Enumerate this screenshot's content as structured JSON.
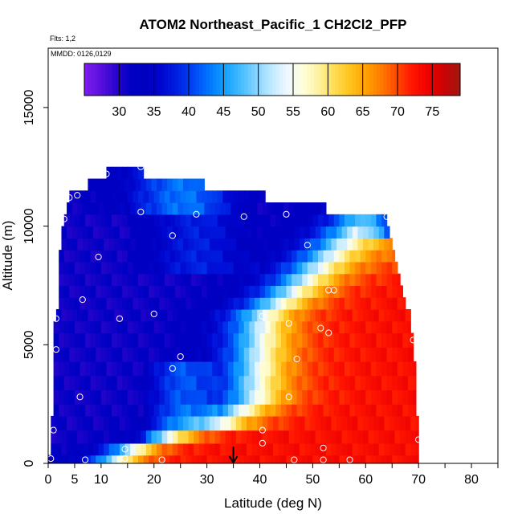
{
  "chart_data": {
    "type": "heatmap",
    "title": "ATOM2 Northeast_Pacific_1 CH2Cl2_PFP",
    "annotations": {
      "flights": "Flts: 1,2",
      "dates": "MMDD: 0126,0129"
    },
    "xlabel": "Latitude (deg N)",
    "ylabel": "Altitude (m)",
    "xlim": [
      0,
      85
    ],
    "ylim": [
      0,
      17500
    ],
    "x_ticks": [
      0,
      5,
      10,
      20,
      30,
      40,
      50,
      60,
      70,
      80
    ],
    "x_tick_labels": [
      "0",
      "5",
      "10",
      "20",
      "30",
      "40",
      "50",
      "60",
      "70",
      "80"
    ],
    "x_minor_ticks": [
      0,
      5,
      10,
      15,
      20,
      25,
      30,
      35,
      40,
      45,
      50,
      55,
      60,
      65,
      70,
      75,
      80,
      85
    ],
    "y_ticks": [
      0,
      5000,
      10000,
      15000
    ],
    "y_tick_labels": [
      "0",
      "5000",
      "10000",
      "15000"
    ],
    "colorbar": {
      "range": [
        25,
        79
      ],
      "ticks": [
        30,
        35,
        40,
        45,
        50,
        55,
        60,
        65,
        70,
        75
      ],
      "tick_labels": [
        "30",
        "35",
        "40",
        "45",
        "50",
        "55",
        "60",
        "65",
        "70",
        "75"
      ],
      "colors": [
        "#7d1df0",
        "#5b10df",
        "#2a05cc",
        "#0000c4",
        "#0000c0",
        "#0008d2",
        "#0022e4",
        "#0048f5",
        "#0078ff",
        "#14a0ff",
        "#46bcff",
        "#86d4ff",
        "#c2eaff",
        "#f0f8ff",
        "#ffffd8",
        "#fff09c",
        "#ffdc50",
        "#ffc21c",
        "#ffa000",
        "#ff7800",
        "#ff4600",
        "#ff1400",
        "#ee0000",
        "#c80404",
        "#a01810"
      ]
    },
    "field": {
      "lat_min": 0,
      "lat_max": 70,
      "lat_step": 1,
      "rows": [
        {
          "alt_bottom": 0,
          "alt_top": 350,
          "lat_start": 0,
          "lat_end": 70
        },
        {
          "alt_bottom": 350,
          "alt_top": 850,
          "lat_start": 0.5,
          "lat_end": 70
        },
        {
          "alt_bottom": 850,
          "alt_top": 1400,
          "lat_start": 0.5,
          "lat_end": 70
        },
        {
          "alt_bottom": 1400,
          "alt_top": 2000,
          "lat_start": 0.5,
          "lat_end": 70
        },
        {
          "alt_bottom": 2000,
          "alt_top": 2500,
          "lat_start": 1,
          "lat_end": 69.5
        },
        {
          "alt_bottom": 2500,
          "alt_top": 3100,
          "lat_start": 1,
          "lat_end": 69.5
        },
        {
          "alt_bottom": 3100,
          "alt_top": 3700,
          "lat_start": 1,
          "lat_end": 69.5
        },
        {
          "alt_bottom": 3700,
          "alt_top": 4300,
          "lat_start": 1,
          "lat_end": 69.5
        },
        {
          "alt_bottom": 4300,
          "alt_top": 4900,
          "lat_start": 1,
          "lat_end": 69
        },
        {
          "alt_bottom": 4900,
          "alt_top": 5500,
          "lat_start": 1,
          "lat_end": 69
        },
        {
          "alt_bottom": 5500,
          "alt_top": 6000,
          "lat_start": 1,
          "lat_end": 68.5
        },
        {
          "alt_bottom": 6000,
          "alt_top": 6500,
          "lat_start": 1.5,
          "lat_end": 68.5
        },
        {
          "alt_bottom": 6500,
          "alt_top": 7000,
          "lat_start": 2,
          "lat_end": 67.5
        },
        {
          "alt_bottom": 7000,
          "alt_top": 7500,
          "lat_start": 2,
          "lat_end": 67
        },
        {
          "alt_bottom": 7500,
          "alt_top": 8000,
          "lat_start": 2,
          "lat_end": 66.5
        },
        {
          "alt_bottom": 8000,
          "alt_top": 8500,
          "lat_start": 2,
          "lat_end": 66
        },
        {
          "alt_bottom": 8500,
          "alt_top": 9000,
          "lat_start": 2,
          "lat_end": 65.5
        },
        {
          "alt_bottom": 9000,
          "alt_top": 9500,
          "lat_start": 2.5,
          "lat_end": 65
        },
        {
          "alt_bottom": 9500,
          "alt_top": 10000,
          "lat_start": 2.5,
          "lat_end": 64.5
        },
        {
          "alt_bottom": 10000,
          "alt_top": 10500,
          "lat_start": 3,
          "lat_end": 64
        },
        {
          "alt_bottom": 10500,
          "alt_top": 11000,
          "lat_start": 3.5,
          "lat_end": 52.5
        },
        {
          "alt_bottom": 11000,
          "alt_top": 11500,
          "lat_start": 4,
          "lat_end": 41
        },
        {
          "alt_bottom": 11500,
          "alt_top": 12000,
          "lat_start": 7.5,
          "lat_end": 29.5
        },
        {
          "alt_bottom": 12000,
          "alt_top": 12500,
          "lat_start": 11,
          "lat_end": 18
        }
      ]
    },
    "samples": [
      [
        0.5,
        200
      ],
      [
        7,
        150
      ],
      [
        14.5,
        200
      ],
      [
        21.5,
        150
      ],
      [
        46.5,
        150
      ],
      [
        52,
        150
      ],
      [
        57,
        150
      ],
      [
        14.5,
        600
      ],
      [
        52,
        650
      ],
      [
        40.5,
        850
      ],
      [
        70,
        1000
      ],
      [
        1,
        1400
      ],
      [
        40.5,
        1400
      ],
      [
        6,
        2800
      ],
      [
        45.5,
        2800
      ],
      [
        23.5,
        4000
      ],
      [
        25,
        4500
      ],
      [
        47,
        4400
      ],
      [
        1.5,
        4800
      ],
      [
        53,
        5500
      ],
      [
        51.5,
        5700
      ],
      [
        69,
        5200
      ],
      [
        1.5,
        6100
      ],
      [
        13.5,
        6100
      ],
      [
        20,
        6300
      ],
      [
        40.5,
        6200
      ],
      [
        45.5,
        5900
      ],
      [
        6.5,
        6900
      ],
      [
        53,
        7300
      ],
      [
        54,
        7300
      ],
      [
        9.5,
        8700
      ],
      [
        49,
        9200
      ],
      [
        23.5,
        9600
      ],
      [
        3,
        10300
      ],
      [
        17.5,
        10600
      ],
      [
        28,
        10500
      ],
      [
        37,
        10400
      ],
      [
        45,
        10500
      ],
      [
        64,
        10400
      ],
      [
        4,
        11200
      ],
      [
        5.5,
        11300
      ],
      [
        11,
        12200
      ],
      [
        17.5,
        12500
      ]
    ],
    "arrow": {
      "lat": 35,
      "alt_top": 700,
      "alt_bottom": 0
    }
  }
}
